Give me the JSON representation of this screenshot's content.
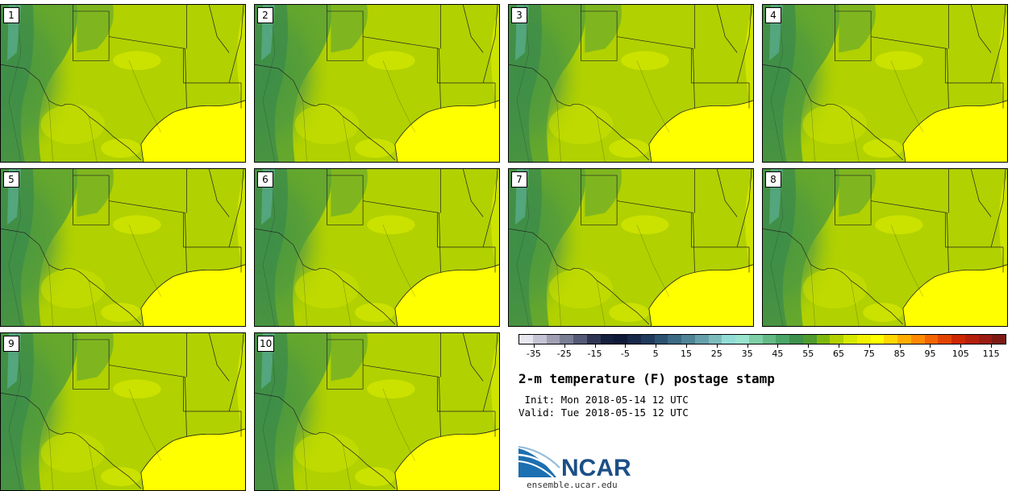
{
  "panels": [
    "1",
    "2",
    "3",
    "4",
    "5",
    "6",
    "7",
    "8",
    "9",
    "10"
  ],
  "colorbar": {
    "colors": [
      "#e6e6f0",
      "#c4c4d4",
      "#a0a0b4",
      "#7a7e94",
      "#545a76",
      "#2f3654",
      "#15203f",
      "#0f1a38",
      "#17284a",
      "#1f3a5c",
      "#2c5271",
      "#3b6a85",
      "#508396",
      "#66a0ab",
      "#7dbcbd",
      "#93dcd6",
      "#99e3cf",
      "#7fcfa6",
      "#63ba85",
      "#4aa567",
      "#3d914b",
      "#4f9b2f",
      "#7fb80c",
      "#b1d100",
      "#d6e800",
      "#f2f200",
      "#ffff00",
      "#ffd800",
      "#ffae00",
      "#ff8a00",
      "#f26500",
      "#e24400",
      "#cd2800",
      "#b51f0d",
      "#9b1c13",
      "#7d1a14"
    ],
    "tick_labels": [
      "-35",
      "-25",
      "-15",
      "-5",
      "5",
      "15",
      "25",
      "35",
      "45",
      "55",
      "65",
      "75",
      "85",
      "95",
      "105",
      "115"
    ],
    "min": -40,
    "max": 120
  },
  "title": "2-m temperature (F) postage stamp",
  "init_line": " Init: Mon 2018-05-14 12 UTC",
  "valid_line": "Valid: Tue 2018-05-15 12 UTC",
  "logo_text": "NCAR",
  "website": "ensemble.ucar.edu"
}
